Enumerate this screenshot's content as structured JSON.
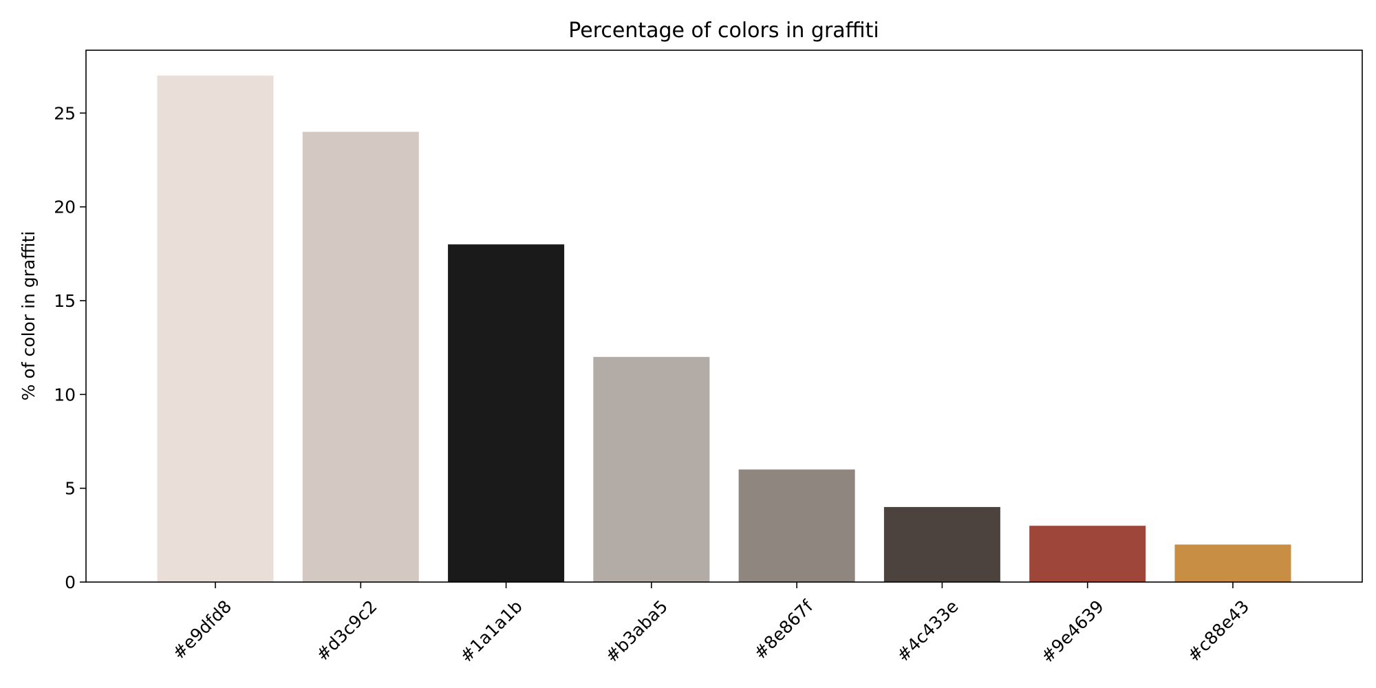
{
  "chart_data": {
    "type": "bar",
    "title": "Percentage of colors in graffiti",
    "xlabel": "",
    "ylabel": "% of color in graffiti",
    "categories": [
      "#e9dfd8",
      "#d3c9c2",
      "#1a1a1b",
      "#b3aba5",
      "#8e867f",
      "#4c433e",
      "#9e4639",
      "#c88e43"
    ],
    "values": [
      27,
      24,
      18,
      12,
      6,
      4,
      3,
      2
    ],
    "bar_colors": [
      "#e9dfd8",
      "#d3c9c2",
      "#1a1a1b",
      "#b3aba5",
      "#8e867f",
      "#4c433e",
      "#9e4639",
      "#c88e43"
    ],
    "ylim": [
      0,
      28.35
    ],
    "yticks": [
      0,
      5,
      10,
      15,
      20,
      25
    ],
    "grid": false,
    "legend": "none"
  }
}
